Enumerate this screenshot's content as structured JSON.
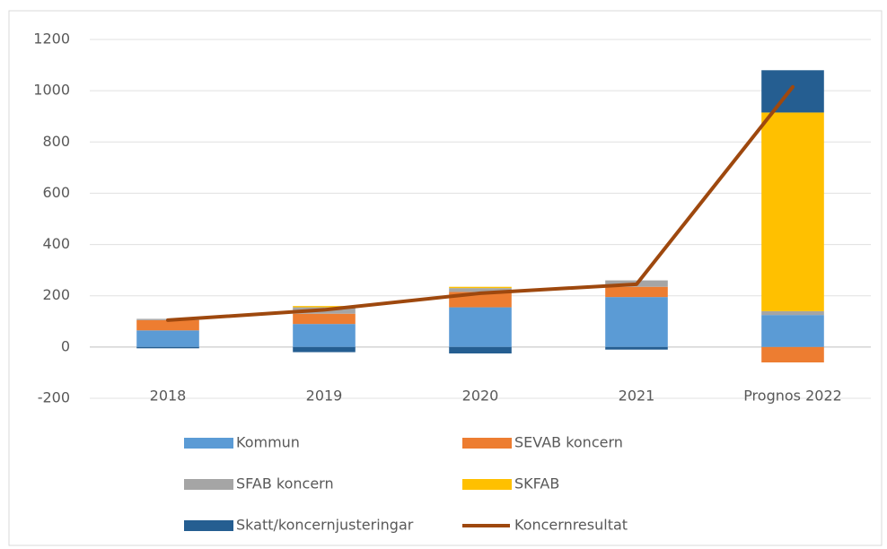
{
  "chart_data": {
    "type": "bar",
    "stacked": true,
    "categories": [
      "2018",
      "2019",
      "2020",
      "2021",
      "Prognos 2022"
    ],
    "series": [
      {
        "name": "Kommun",
        "color": "#5b9bd5",
        "values": [
          65,
          90,
          155,
          195,
          125
        ]
      },
      {
        "name": "SEVAB koncern",
        "color": "#ed7d31",
        "values": [
          40,
          40,
          60,
          40,
          -60
        ]
      },
      {
        "name": "SFAB koncern",
        "color": "#a5a5a5",
        "values": [
          5,
          25,
          15,
          25,
          15
        ]
      },
      {
        "name": "SKFAB",
        "color": "#ffc000",
        "values": [
          0,
          5,
          5,
          0,
          775
        ]
      },
      {
        "name": "Skatt/koncernjusteringar",
        "color": "#255e91",
        "values": [
          -5,
          -20,
          -25,
          -10,
          165
        ]
      },
      {
        "name": "Koncernresultat",
        "color": "#9e480e",
        "type": "line",
        "values": [
          105,
          145,
          210,
          245,
          1015
        ]
      }
    ],
    "ylim": [
      -200,
      1200
    ],
    "yticks": [
      -200,
      0,
      200,
      400,
      600,
      800,
      1000,
      1200
    ],
    "grid": true
  }
}
